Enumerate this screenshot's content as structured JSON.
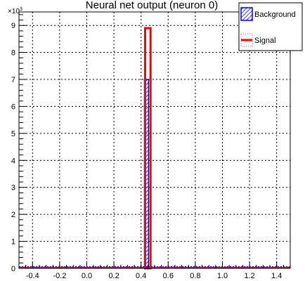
{
  "chart_data": {
    "type": "histogram",
    "title": "Neural net output (neuron 0)",
    "xlim": [
      -0.5,
      1.5
    ],
    "ylim": [
      0,
      9500
    ],
    "y_exponent_label": "×10",
    "y_exponent_power": "3",
    "x_ticks": [
      -0.4,
      -0.2,
      0.0,
      0.2,
      0.4,
      0.6,
      0.8,
      1.0,
      1.2,
      1.4
    ],
    "x_tick_labels": [
      "-0.4",
      "-0.2",
      "0.0",
      "0.2",
      "0.4",
      "0.6",
      "0.8",
      "1.0",
      "1.2",
      "1.4"
    ],
    "y_ticks": [
      0,
      1000,
      2000,
      3000,
      4000,
      5000,
      6000,
      7000,
      8000,
      9000
    ],
    "y_tick_labels": [
      "0",
      "1",
      "2",
      "3",
      "4",
      "5",
      "6",
      "7",
      "8",
      "9"
    ],
    "grid": true,
    "legend_position": "top-right",
    "series": [
      {
        "name": "Background",
        "color": "#0000ff",
        "style": "hatched-fill",
        "bin_low": 0.425,
        "bin_high": 0.455,
        "peak": 7000
      },
      {
        "name": "Signal",
        "color": "#ff0000",
        "style": "outline",
        "bin_low": 0.43,
        "bin_high": 0.47,
        "peak": 8900
      }
    ]
  }
}
